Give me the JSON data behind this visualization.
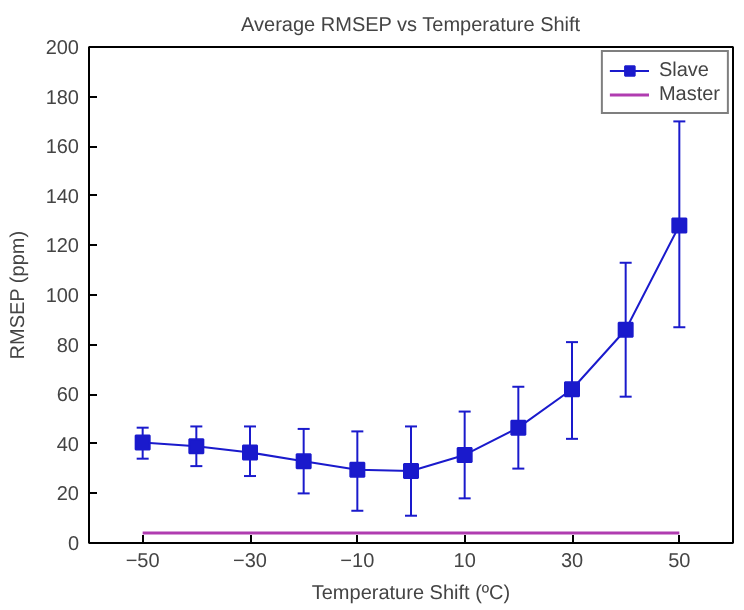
{
  "chart_data": {
    "type": "line",
    "title": "Average RMSEP vs Temperature Shift",
    "xlabel": "Temperature Shift (ºC)",
    "ylabel": "RMSEP (ppm)",
    "x": [
      -50,
      -40,
      -30,
      -20,
      -10,
      0,
      10,
      20,
      30,
      40,
      50
    ],
    "series": [
      {
        "name": "Slave",
        "color": "#1a1acc",
        "marker": "square",
        "values": [
          40.5,
          39,
          36.5,
          33,
          29.5,
          29,
          35.5,
          46.5,
          62,
          86,
          128
        ],
        "errors": [
          [
            34,
            46.5
          ],
          [
            31,
            47
          ],
          [
            27,
            47
          ],
          [
            20,
            46
          ],
          [
            13,
            45
          ],
          [
            11,
            47
          ],
          [
            18,
            53
          ],
          [
            30,
            63
          ],
          [
            42,
            81
          ],
          [
            59,
            113
          ],
          [
            87,
            170
          ]
        ]
      },
      {
        "name": "Master",
        "color": "#b03cb0",
        "marker": "none",
        "values": [
          4,
          4,
          4,
          4,
          4,
          4,
          4,
          4,
          4,
          4,
          4
        ]
      }
    ],
    "xlim": [
      -60,
      60
    ],
    "ylim": [
      0,
      200
    ],
    "xticks": [
      {
        "value": -50,
        "label": "−50"
      },
      {
        "value": -30,
        "label": "−30"
      },
      {
        "value": -10,
        "label": "−10"
      },
      10,
      30,
      50
    ],
    "yticks": [
      0,
      20,
      40,
      60,
      80,
      100,
      120,
      140,
      160,
      180,
      200
    ],
    "legend": "top right",
    "grid": false
  }
}
